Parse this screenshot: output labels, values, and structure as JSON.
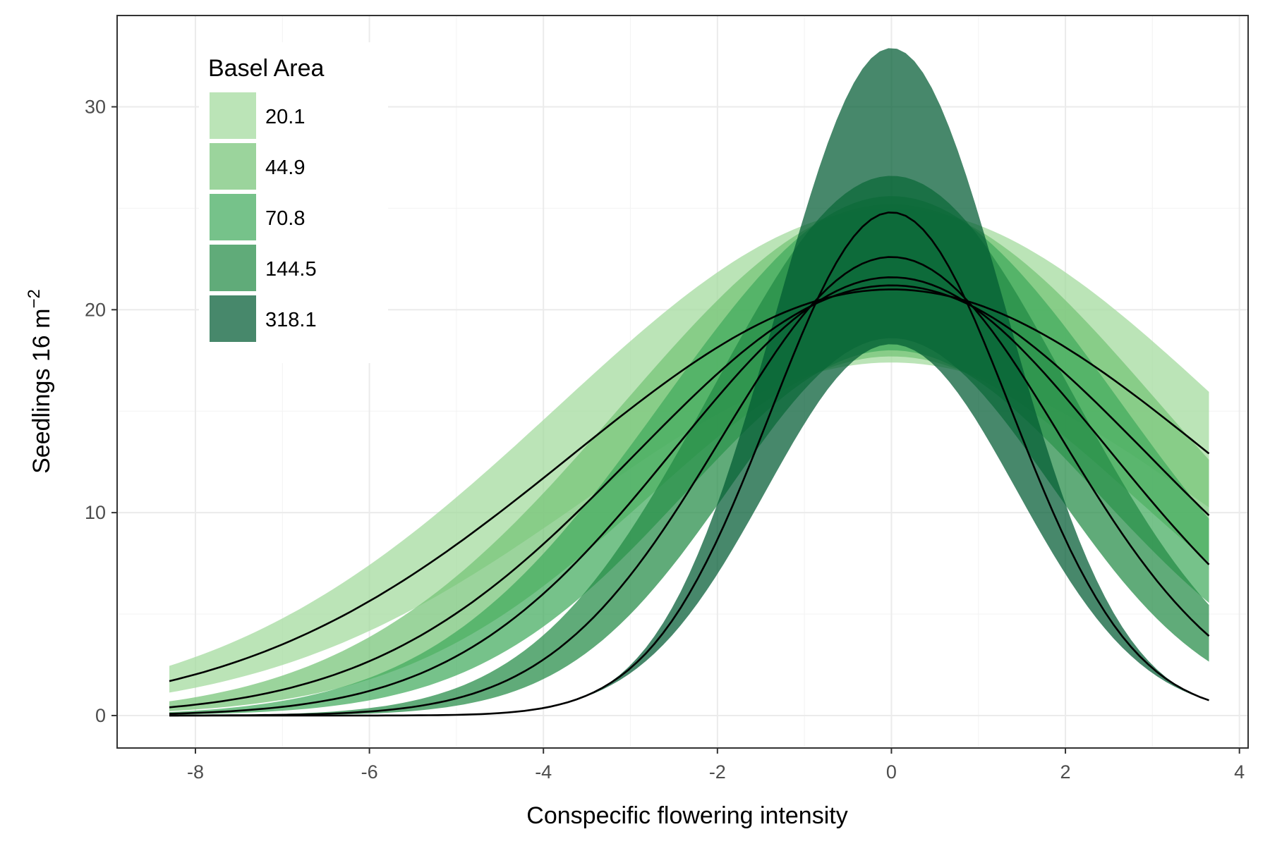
{
  "chart_data": {
    "type": "area",
    "title": "",
    "xlabel": "Conspecific flowering intensity",
    "ylabel": "Seedlings 16 m",
    "ylabel_superscript": "−2",
    "xlim": [
      -8.9,
      4.1
    ],
    "ylim": [
      -1.6,
      34.5
    ],
    "x_ticks": [
      -8,
      -6,
      -4,
      -2,
      0,
      2,
      4
    ],
    "x_tick_labels": [
      "-8",
      "-6",
      "-4",
      "-2",
      "0",
      "2",
      "4"
    ],
    "y_ticks": [
      0,
      10,
      20,
      30
    ],
    "y_tick_labels": [
      "0",
      "10",
      "20",
      "30"
    ],
    "grid": true,
    "legend": {
      "title": "Basel Area",
      "position": "top-left"
    },
    "x_range": [
      -8.3,
      3.65
    ],
    "band_opacity": 0.72,
    "line_color": "#000000",
    "series": [
      {
        "name": "20.1",
        "color": "#a1d99b",
        "peak": 21.0,
        "width": 3.7,
        "upper_peak": 25.0,
        "upper_width": 3.85,
        "lower_peak": 17.4,
        "lower_width": 3.55
      },
      {
        "name": "44.9",
        "color": "#74c476",
        "peak": 21.2,
        "width": 2.95,
        "upper_peak": 25.2,
        "upper_width": 3.1,
        "lower_peak": 17.7,
        "lower_width": 2.8
      },
      {
        "name": "70.8",
        "color": "#41ab5d",
        "peak": 21.6,
        "width": 2.5,
        "upper_peak": 25.6,
        "upper_width": 2.62,
        "lower_peak": 18.0,
        "lower_width": 2.38
      },
      {
        "name": "144.5",
        "color": "#238b45",
        "peak": 22.6,
        "width": 1.95,
        "upper_peak": 26.6,
        "upper_width": 2.05,
        "lower_peak": 18.6,
        "lower_width": 1.85
      },
      {
        "name": "318.1",
        "color": "#005a32",
        "peak": 24.8,
        "width": 1.38,
        "upper_peak": 32.9,
        "upper_width": 1.32,
        "lower_peak": 18.3,
        "lower_width": 1.44
      }
    ]
  }
}
